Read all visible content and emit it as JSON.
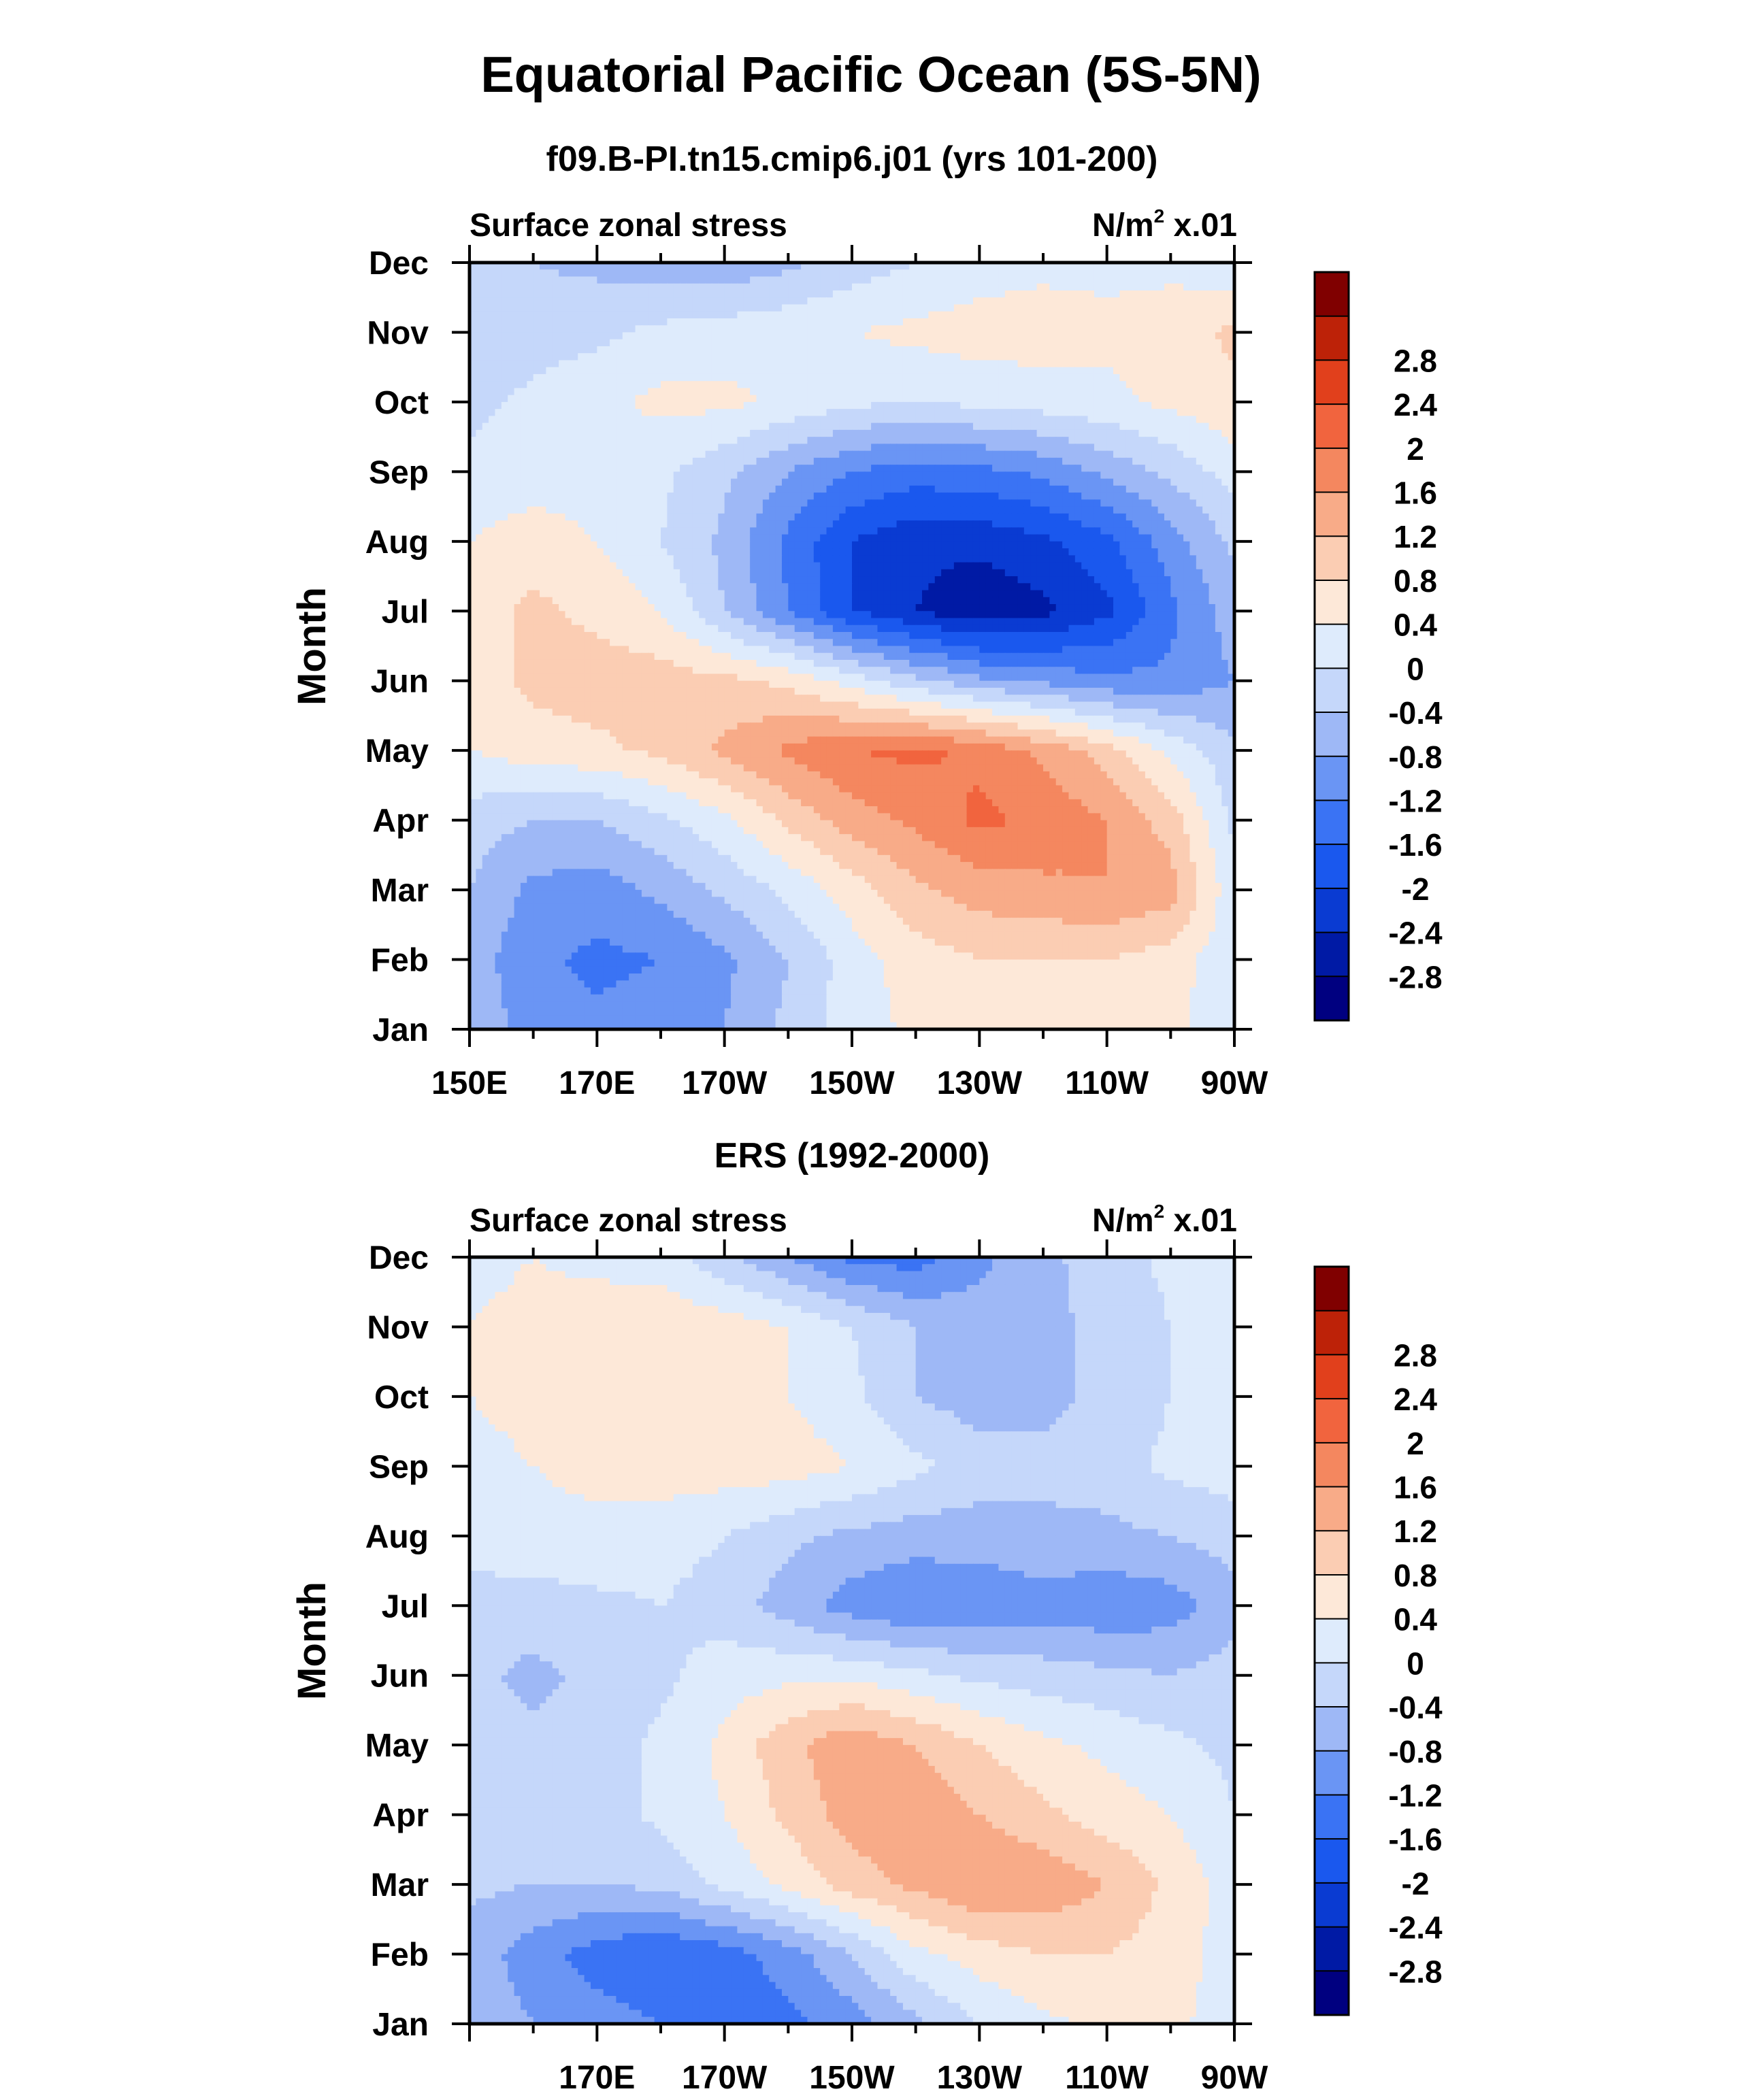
{
  "figure": {
    "title": "Equatorial Pacific Ocean (5S-5N)"
  },
  "colorbar": {
    "colors": [
      "#000080",
      "#001aa5",
      "#0a3bd2",
      "#1a58ee",
      "#3a73f4",
      "#6a95f4",
      "#9eb8f6",
      "#c5d7fa",
      "#deebfc",
      "#fde8d8",
      "#fbcdb3",
      "#f8ab88",
      "#f4875f",
      "#f1643e",
      "#e1401c",
      "#bd2208",
      "#800000"
    ],
    "labels": [
      "-2.8",
      "-2.4",
      "-2",
      "-1.6",
      "-1.2",
      "-0.8",
      "-0.4",
      "0",
      "0.4",
      "0.8",
      "1.2",
      "1.6",
      "2",
      "2.4",
      "2.8"
    ]
  },
  "chart_data": [
    {
      "type": "heatmap",
      "id": "model",
      "title": "f09.B-PI.tn15.cmip6.j01 (yrs 101-200)",
      "left_string": "Surface zonal stress",
      "units_main": "N/m",
      "units_sup": "2",
      "units_scale": " x.01",
      "ylabel": "Month",
      "months": [
        "Jan",
        "Feb",
        "Mar",
        "Apr",
        "May",
        "Jun",
        "Jul",
        "Aug",
        "Sep",
        "Oct",
        "Nov",
        "Dec"
      ],
      "xlim": [
        150,
        270
      ],
      "xticks": [
        150,
        170,
        190,
        210,
        230,
        250,
        270
      ],
      "xtick_labels": [
        "150E",
        "170E",
        "170W",
        "150W",
        "130W",
        "110W",
        "90W"
      ],
      "contour_levels": [
        -2.8,
        -2.4,
        -2,
        -1.6,
        -1.2,
        -0.8,
        -0.4,
        0,
        0.4,
        0.8,
        1.2,
        1.6,
        2,
        2.4,
        2.8
      ],
      "longitudes": [
        150,
        160,
        170,
        180,
        190,
        200,
        210,
        220,
        230,
        240,
        250,
        260,
        270
      ],
      "values": [
        [
          -0.5,
          -1.0,
          -1.1,
          -1.0,
          -0.8,
          -0.3,
          0.2,
          0.5,
          0.6,
          0.6,
          0.6,
          0.5,
          0.1
        ],
        [
          -0.6,
          -1.1,
          -1.3,
          -1.2,
          -0.9,
          -0.4,
          0.2,
          0.6,
          0.8,
          0.8,
          0.8,
          0.6,
          0.1
        ],
        [
          -0.4,
          -0.9,
          -1.0,
          -0.7,
          -0.3,
          0.1,
          0.6,
          1.1,
          1.4,
          1.5,
          1.6,
          1.4,
          0.1
        ],
        [
          -0.2,
          -0.4,
          -0.4,
          -0.1,
          0.3,
          0.9,
          1.4,
          1.7,
          2.1,
          1.9,
          1.6,
          1.0,
          -0.1
        ],
        [
          0.4,
          0.6,
          0.7,
          0.9,
          1.3,
          1.7,
          2.0,
          2.1,
          1.9,
          1.5,
          1.0,
          0.3,
          -0.3
        ],
        [
          0.6,
          0.9,
          1.0,
          1.0,
          0.9,
          0.7,
          0.2,
          -0.3,
          -0.7,
          -0.9,
          -1.1,
          -1.1,
          -0.8
        ],
        [
          0.6,
          0.9,
          0.7,
          0.4,
          -0.4,
          -1.2,
          -2.0,
          -2.4,
          -2.7,
          -2.5,
          -2.1,
          -1.3,
          -0.6
        ],
        [
          0.4,
          0.6,
          0.4,
          0.0,
          -0.5,
          -1.3,
          -2.0,
          -2.3,
          -2.3,
          -2.1,
          -1.7,
          -1.0,
          -0.3
        ],
        [
          0.1,
          0.2,
          0.2,
          0.1,
          -0.3,
          -0.8,
          -1.2,
          -1.4,
          -1.3,
          -1.1,
          -0.7,
          -0.3,
          0.2
        ],
        [
          -0.1,
          0.1,
          0.3,
          0.5,
          0.5,
          0.3,
          0.1,
          0.0,
          0.1,
          0.2,
          0.3,
          0.5,
          0.7
        ],
        [
          -0.3,
          -0.2,
          -0.1,
          0.1,
          0.2,
          0.3,
          0.4,
          0.5,
          0.6,
          0.6,
          0.5,
          0.6,
          0.9
        ],
        [
          -0.4,
          -0.4,
          -0.5,
          -0.6,
          -0.7,
          -0.5,
          -0.2,
          0.0,
          0.2,
          0.3,
          0.3,
          0.3,
          0.1
        ]
      ]
    },
    {
      "type": "heatmap",
      "id": "ers",
      "title": "ERS (1992-2000)",
      "left_string": "Surface zonal stress",
      "units_main": "N/m",
      "units_sup": "2",
      "units_scale": " x.01",
      "ylabel": "Month",
      "months": [
        "Jan",
        "Feb",
        "Mar",
        "Apr",
        "May",
        "Jun",
        "Jul",
        "Aug",
        "Sep",
        "Oct",
        "Nov",
        "Dec"
      ],
      "xlim": [
        150,
        270
      ],
      "xticks": [
        170,
        190,
        210,
        230,
        250,
        270
      ],
      "xtick_labels": [
        "170E",
        "170W",
        "150W",
        "130W",
        "110W",
        "90W"
      ],
      "contour_levels": [
        -2.8,
        -2.4,
        -2,
        -1.6,
        -1.2,
        -0.8,
        -0.4,
        0,
        0.4,
        0.8,
        1.2,
        1.6,
        2,
        2.4,
        2.8
      ],
      "longitudes": [
        150,
        160,
        170,
        180,
        190,
        200,
        210,
        220,
        230,
        240,
        250,
        260,
        270
      ],
      "values": [
        [
          -0.5,
          -0.8,
          -1.0,
          -1.2,
          -1.4,
          -1.3,
          -1.0,
          -0.5,
          0.0,
          0.3,
          0.5,
          0.5,
          0.2
        ],
        [
          -0.6,
          -1.0,
          -1.4,
          -1.6,
          -1.4,
          -1.0,
          -0.4,
          0.3,
          0.6,
          0.8,
          0.8,
          0.6,
          0.2
        ],
        [
          -0.3,
          -0.4,
          -0.4,
          -0.3,
          0.1,
          0.5,
          1.0,
          1.3,
          1.6,
          1.5,
          1.2,
          0.7,
          0.2
        ],
        [
          -0.2,
          -0.3,
          -0.2,
          0.1,
          0.4,
          0.9,
          1.4,
          1.5,
          1.2,
          0.9,
          0.6,
          0.4,
          0.0
        ],
        [
          -0.2,
          -0.3,
          -0.2,
          0.1,
          0.5,
          1.1,
          1.5,
          1.2,
          0.8,
          0.5,
          0.3,
          0.1,
          -0.1
        ],
        [
          -0.3,
          -0.5,
          -0.3,
          -0.1,
          0.2,
          0.3,
          0.3,
          0.1,
          -0.1,
          -0.2,
          -0.3,
          -0.4,
          -0.2
        ],
        [
          -0.2,
          -0.2,
          -0.1,
          0.0,
          -0.2,
          -0.6,
          -1.0,
          -1.2,
          -1.1,
          -1.0,
          -1.1,
          -1.0,
          -0.6
        ],
        [
          0.2,
          0.3,
          0.3,
          0.2,
          0.0,
          -0.3,
          -0.5,
          -0.6,
          -0.6,
          -0.5,
          -0.5,
          -0.4,
          -0.2
        ],
        [
          0.3,
          0.4,
          0.5,
          0.6,
          0.6,
          0.6,
          0.4,
          0.1,
          -0.2,
          -0.3,
          -0.2,
          0.1,
          0.2
        ],
        [
          0.4,
          0.5,
          0.6,
          0.6,
          0.6,
          0.4,
          0.1,
          -0.4,
          -0.6,
          -0.5,
          -0.3,
          0.0,
          0.2
        ],
        [
          0.4,
          0.5,
          0.6,
          0.7,
          0.6,
          0.4,
          0.0,
          -0.4,
          -0.6,
          -0.5,
          -0.3,
          0.0,
          0.2
        ],
        [
          0.3,
          0.4,
          0.3,
          0.2,
          -0.3,
          -0.8,
          -1.3,
          -1.4,
          -0.9,
          -0.5,
          -0.2,
          0.1,
          0.1
        ]
      ]
    }
  ]
}
